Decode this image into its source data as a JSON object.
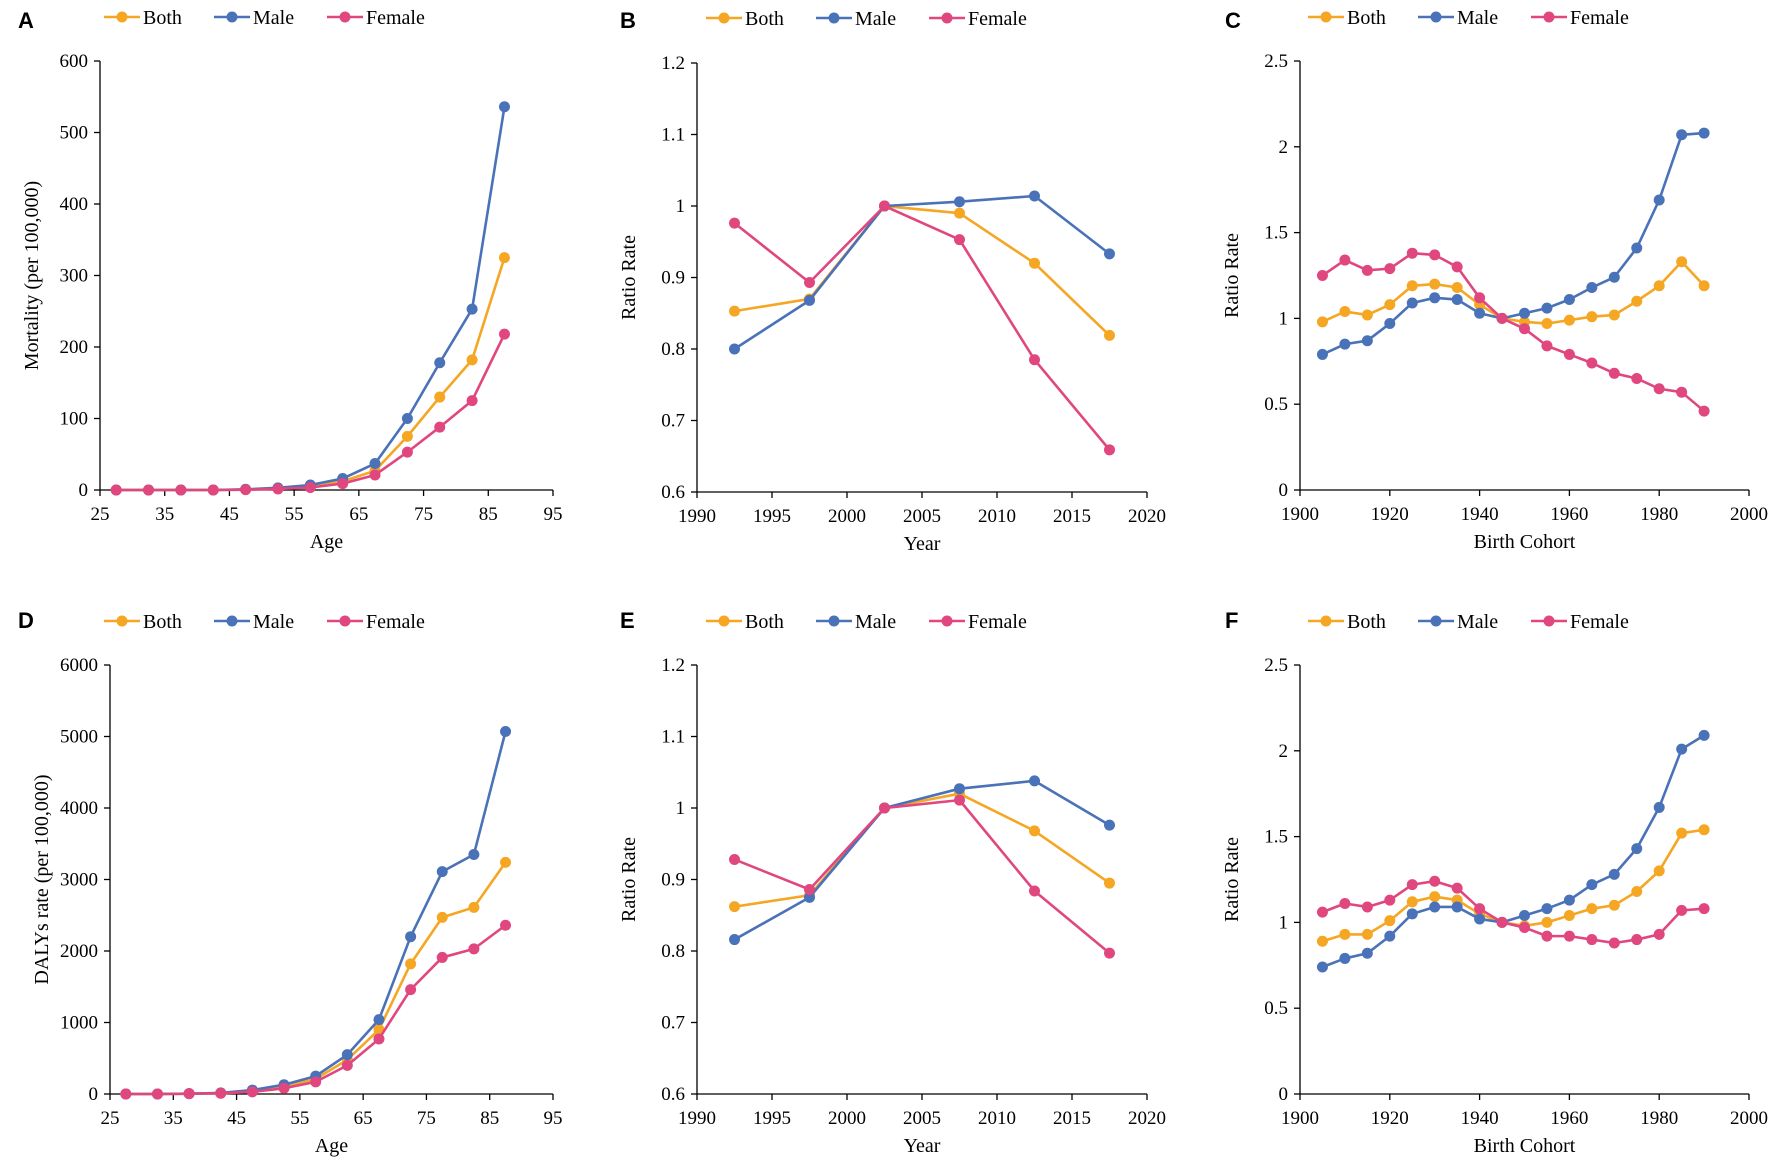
{
  "colors": {
    "Both": "#F5A623",
    "Male": "#4A72B8",
    "Female": "#E0477F"
  },
  "chart_data": [
    {
      "panel": "A",
      "type": "line",
      "xlabel": "Age",
      "ylabel": "Mortality (per 100,000)",
      "xlim": [
        25,
        95
      ],
      "xticks": [
        25,
        35,
        45,
        55,
        65,
        75,
        85,
        95
      ],
      "ylim": [
        0,
        600
      ],
      "yticks": [
        0,
        100,
        200,
        300,
        400,
        500,
        600
      ],
      "legend": [
        "Both",
        "Male",
        "Female"
      ],
      "x": [
        27.5,
        32.5,
        37.5,
        42.5,
        47.5,
        52.5,
        57.5,
        62.5,
        67.5,
        72.5,
        77.5,
        82.5,
        87.5
      ],
      "series": [
        {
          "name": "Both",
          "values": [
            0,
            0,
            0,
            0,
            0.5,
            2,
            5,
            12,
            27,
            75,
            130,
            182,
            325
          ]
        },
        {
          "name": "Male",
          "values": [
            0,
            0,
            0,
            0,
            1,
            3,
            7,
            16,
            37,
            100,
            178,
            253,
            536
          ]
        },
        {
          "name": "Female",
          "values": [
            0,
            0,
            0,
            0,
            0.5,
            1.5,
            3.5,
            9,
            21,
            53,
            88,
            125,
            218
          ]
        }
      ]
    },
    {
      "panel": "B",
      "type": "line",
      "xlabel": "Year",
      "ylabel": "Ratio Rate",
      "xlim": [
        1990,
        2020
      ],
      "xticks": [
        1990,
        1995,
        2000,
        2005,
        2010,
        2015,
        2020
      ],
      "ylim": [
        0.6,
        1.2
      ],
      "yticks": [
        0.6,
        0.7,
        0.8,
        0.9,
        1,
        1.1,
        1.2
      ],
      "legend": [
        "Both",
        "Male",
        "Female"
      ],
      "x": [
        1992.5,
        1997.5,
        2002.5,
        2007.5,
        2012.5,
        2017.5
      ],
      "series": [
        {
          "name": "Both",
          "values": [
            0.853,
            0.87,
            1.0,
            0.99,
            0.92,
            0.819
          ]
        },
        {
          "name": "Male",
          "values": [
            0.8,
            0.868,
            1.0,
            1.006,
            1.014,
            0.933
          ]
        },
        {
          "name": "Female",
          "values": [
            0.976,
            0.893,
            1.0,
            0.953,
            0.785,
            0.659
          ]
        }
      ]
    },
    {
      "panel": "C",
      "type": "line",
      "xlabel": "Birth Cohort",
      "ylabel": "Ratio Rate",
      "xlim": [
        1900,
        2000
      ],
      "xticks": [
        1900,
        1920,
        1940,
        1960,
        1980,
        2000
      ],
      "ylim": [
        0,
        2.5
      ],
      "yticks": [
        0,
        0.5,
        1,
        1.5,
        2,
        2.5
      ],
      "legend": [
        "Both",
        "Male",
        "Female"
      ],
      "x": [
        1905,
        1910,
        1915,
        1920,
        1925,
        1930,
        1935,
        1940,
        1945,
        1950,
        1955,
        1960,
        1965,
        1970,
        1975,
        1980,
        1985,
        1990
      ],
      "series": [
        {
          "name": "Both",
          "values": [
            0.98,
            1.04,
            1.02,
            1.08,
            1.19,
            1.2,
            1.18,
            1.08,
            1.0,
            0.98,
            0.97,
            0.99,
            1.01,
            1.02,
            1.1,
            1.19,
            1.33,
            1.19
          ]
        },
        {
          "name": "Male",
          "values": [
            0.79,
            0.85,
            0.87,
            0.97,
            1.09,
            1.12,
            1.11,
            1.03,
            1.0,
            1.03,
            1.06,
            1.11,
            1.18,
            1.24,
            1.41,
            1.69,
            2.07,
            2.08
          ]
        },
        {
          "name": "Female",
          "values": [
            1.25,
            1.34,
            1.28,
            1.29,
            1.38,
            1.37,
            1.3,
            1.12,
            1.0,
            0.94,
            0.84,
            0.79,
            0.74,
            0.68,
            0.65,
            0.59,
            0.57,
            0.46
          ]
        }
      ]
    },
    {
      "panel": "D",
      "type": "line",
      "xlabel": "Age",
      "ylabel": "DALYs rate (per 100,000)",
      "xlim": [
        25,
        95
      ],
      "xticks": [
        25,
        35,
        45,
        55,
        65,
        75,
        85,
        95
      ],
      "ylim": [
        0,
        6000
      ],
      "yticks": [
        0,
        1000,
        2000,
        3000,
        4000,
        5000,
        6000
      ],
      "legend": [
        "Both",
        "Male",
        "Female"
      ],
      "x": [
        27.5,
        32.5,
        37.5,
        42.5,
        47.5,
        52.5,
        57.5,
        62.5,
        67.5,
        72.5,
        77.5,
        82.5,
        87.5
      ],
      "series": [
        {
          "name": "Both",
          "values": [
            0,
            0,
            5,
            10,
            40,
            100,
            210,
            480,
            900,
            1820,
            2470,
            2610,
            3240
          ]
        },
        {
          "name": "Male",
          "values": [
            0,
            0,
            5,
            15,
            55,
            130,
            250,
            550,
            1040,
            2200,
            3110,
            3350,
            5070
          ]
        },
        {
          "name": "Female",
          "values": [
            0,
            0,
            5,
            10,
            30,
            80,
            170,
            400,
            770,
            1460,
            1910,
            2030,
            2360
          ]
        }
      ]
    },
    {
      "panel": "E",
      "type": "line",
      "xlabel": "Year",
      "ylabel": "Ratio Rate",
      "xlim": [
        1990,
        2020
      ],
      "xticks": [
        1990,
        1995,
        2000,
        2005,
        2010,
        2015,
        2020
      ],
      "ylim": [
        0.6,
        1.2
      ],
      "yticks": [
        0.6,
        0.7,
        0.8,
        0.9,
        1,
        1.1,
        1.2
      ],
      "legend": [
        "Both",
        "Male",
        "Female"
      ],
      "x": [
        1992.5,
        1997.5,
        2002.5,
        2007.5,
        2012.5,
        2017.5
      ],
      "series": [
        {
          "name": "Both",
          "values": [
            0.862,
            0.878,
            1.0,
            1.02,
            0.968,
            0.895
          ]
        },
        {
          "name": "Male",
          "values": [
            0.816,
            0.875,
            1.0,
            1.027,
            1.038,
            0.976
          ]
        },
        {
          "name": "Female",
          "values": [
            0.928,
            0.886,
            1.0,
            1.011,
            0.884,
            0.797
          ]
        }
      ]
    },
    {
      "panel": "F",
      "type": "line",
      "xlabel": "Birth Cohort",
      "ylabel": "Ratio Rate",
      "xlim": [
        1900,
        2000
      ],
      "xticks": [
        1900,
        1920,
        1940,
        1960,
        1980,
        2000
      ],
      "ylim": [
        0,
        2.5
      ],
      "yticks": [
        0,
        0.5,
        1,
        1.5,
        2,
        2.5
      ],
      "legend": [
        "Both",
        "Male",
        "Female"
      ],
      "x": [
        1905,
        1910,
        1915,
        1920,
        1925,
        1930,
        1935,
        1940,
        1945,
        1950,
        1955,
        1960,
        1965,
        1970,
        1975,
        1980,
        1985,
        1990
      ],
      "series": [
        {
          "name": "Both",
          "values": [
            0.89,
            0.93,
            0.93,
            1.01,
            1.12,
            1.15,
            1.13,
            1.05,
            1.0,
            0.98,
            1.0,
            1.04,
            1.08,
            1.1,
            1.18,
            1.3,
            1.52,
            1.54
          ]
        },
        {
          "name": "Male",
          "values": [
            0.74,
            0.79,
            0.82,
            0.92,
            1.05,
            1.09,
            1.09,
            1.02,
            1.0,
            1.04,
            1.08,
            1.13,
            1.22,
            1.28,
            1.43,
            1.67,
            2.01,
            2.09
          ]
        },
        {
          "name": "Female",
          "values": [
            1.06,
            1.11,
            1.09,
            1.13,
            1.22,
            1.24,
            1.2,
            1.08,
            1.0,
            0.97,
            0.92,
            0.92,
            0.9,
            0.88,
            0.9,
            0.93,
            1.07,
            1.08
          ]
        }
      ]
    }
  ]
}
